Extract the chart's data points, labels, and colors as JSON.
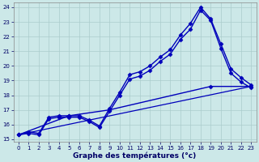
{
  "title": "",
  "xlabel": "Graphe des températures (°c)",
  "ylabel": "",
  "bg_color": "#cce8e8",
  "grid_color": "#aacccc",
  "line_color": "#0000bb",
  "xlim": [
    -0.5,
    23.5
  ],
  "ylim": [
    14.8,
    24.3
  ],
  "yticks": [
    15,
    16,
    17,
    18,
    19,
    20,
    21,
    22,
    23,
    24
  ],
  "xticks": [
    0,
    1,
    2,
    3,
    4,
    5,
    6,
    7,
    8,
    9,
    10,
    11,
    12,
    13,
    14,
    15,
    16,
    17,
    18,
    19,
    20,
    21,
    22,
    23
  ],
  "series": [
    {
      "x": [
        0,
        1,
        2,
        3,
        4,
        5,
        6,
        7,
        8,
        9,
        10,
        11,
        12,
        13,
        14,
        15,
        16,
        17,
        18,
        19,
        20,
        21,
        22,
        23
      ],
      "y": [
        15.3,
        15.5,
        15.4,
        16.5,
        16.6,
        16.6,
        16.6,
        16.3,
        15.9,
        17.1,
        18.2,
        19.4,
        19.6,
        20.0,
        20.6,
        21.1,
        22.1,
        22.9,
        24.0,
        23.2,
        21.5,
        19.8,
        19.2,
        18.7
      ],
      "marker": "D",
      "markersize": 2.5,
      "linewidth": 1.0
    },
    {
      "x": [
        0,
        1,
        2,
        3,
        4,
        5,
        6,
        7,
        8,
        9,
        10,
        11,
        12,
        13,
        14,
        15,
        16,
        17,
        18,
        19,
        20,
        21,
        22,
        23
      ],
      "y": [
        15.3,
        15.4,
        15.3,
        16.4,
        16.5,
        16.5,
        16.5,
        16.2,
        15.8,
        16.9,
        18.0,
        19.1,
        19.3,
        19.7,
        20.3,
        20.8,
        21.8,
        22.5,
        23.8,
        23.1,
        21.2,
        19.5,
        18.9,
        18.5
      ],
      "marker": "D",
      "markersize": 2.5,
      "linewidth": 1.0
    },
    {
      "x": [
        0,
        23
      ],
      "y": [
        15.3,
        18.6
      ],
      "marker": null,
      "markersize": 0,
      "linewidth": 0.9
    },
    {
      "x": [
        0,
        5,
        9,
        19,
        23
      ],
      "y": [
        15.3,
        16.6,
        17.0,
        18.6,
        18.6
      ],
      "marker": "D",
      "markersize": 2.5,
      "linewidth": 1.0
    }
  ],
  "figsize": [
    3.2,
    2.0
  ],
  "dpi": 100,
  "xlabel_fontsize": 6.5,
  "tick_fontsize": 5.0
}
